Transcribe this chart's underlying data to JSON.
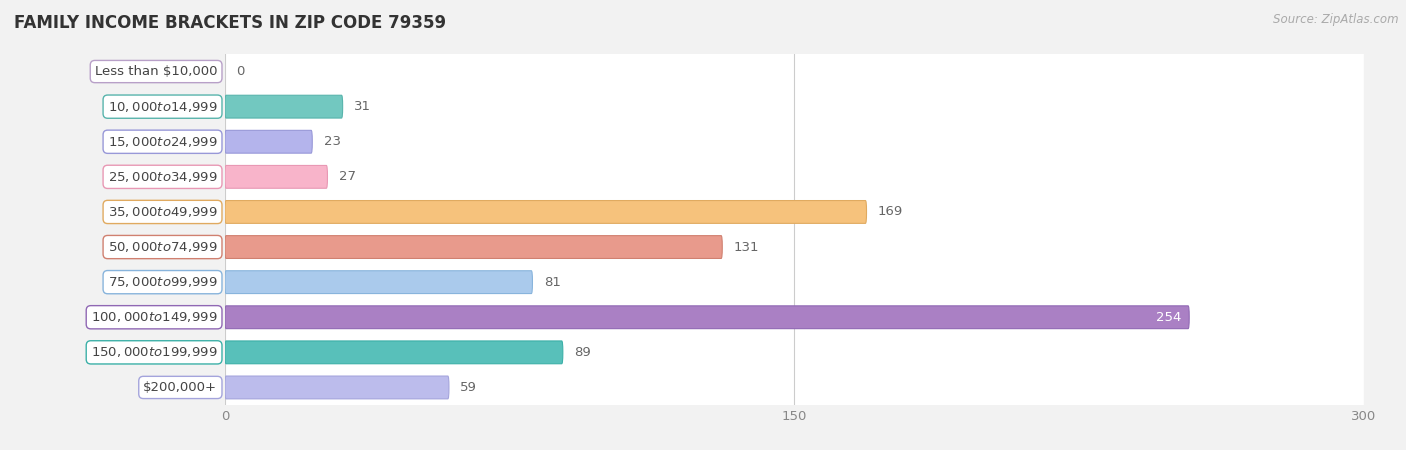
{
  "title": "FAMILY INCOME BRACKETS IN ZIP CODE 79359",
  "source": "Source: ZipAtlas.com",
  "categories": [
    "Less than $10,000",
    "$10,000 to $14,999",
    "$15,000 to $24,999",
    "$25,000 to $34,999",
    "$35,000 to $49,999",
    "$50,000 to $74,999",
    "$75,000 to $99,999",
    "$100,000 to $149,999",
    "$150,000 to $199,999",
    "$200,000+"
  ],
  "values": [
    0,
    31,
    23,
    27,
    169,
    131,
    81,
    254,
    89,
    59
  ],
  "bar_colors": [
    "#cbb8d8",
    "#72c8c0",
    "#b4b4ec",
    "#f8b4ca",
    "#f6c27c",
    "#e89a8c",
    "#aacaec",
    "#aa80c4",
    "#58c0ba",
    "#bcbcec"
  ],
  "bar_edge_colors": [
    "#b8a0c8",
    "#58b4ac",
    "#9898d8",
    "#e898b4",
    "#e0aa60",
    "#d08070",
    "#88b4dc",
    "#9068b4",
    "#3cb0a8",
    "#a4a4dc"
  ],
  "xlim": [
    0,
    300
  ],
  "xticks": [
    0,
    150,
    300
  ],
  "background_color": "#f2f2f2",
  "title_fontsize": 12,
  "label_fontsize": 9.5,
  "value_fontsize": 9.5,
  "source_fontsize": 8.5
}
